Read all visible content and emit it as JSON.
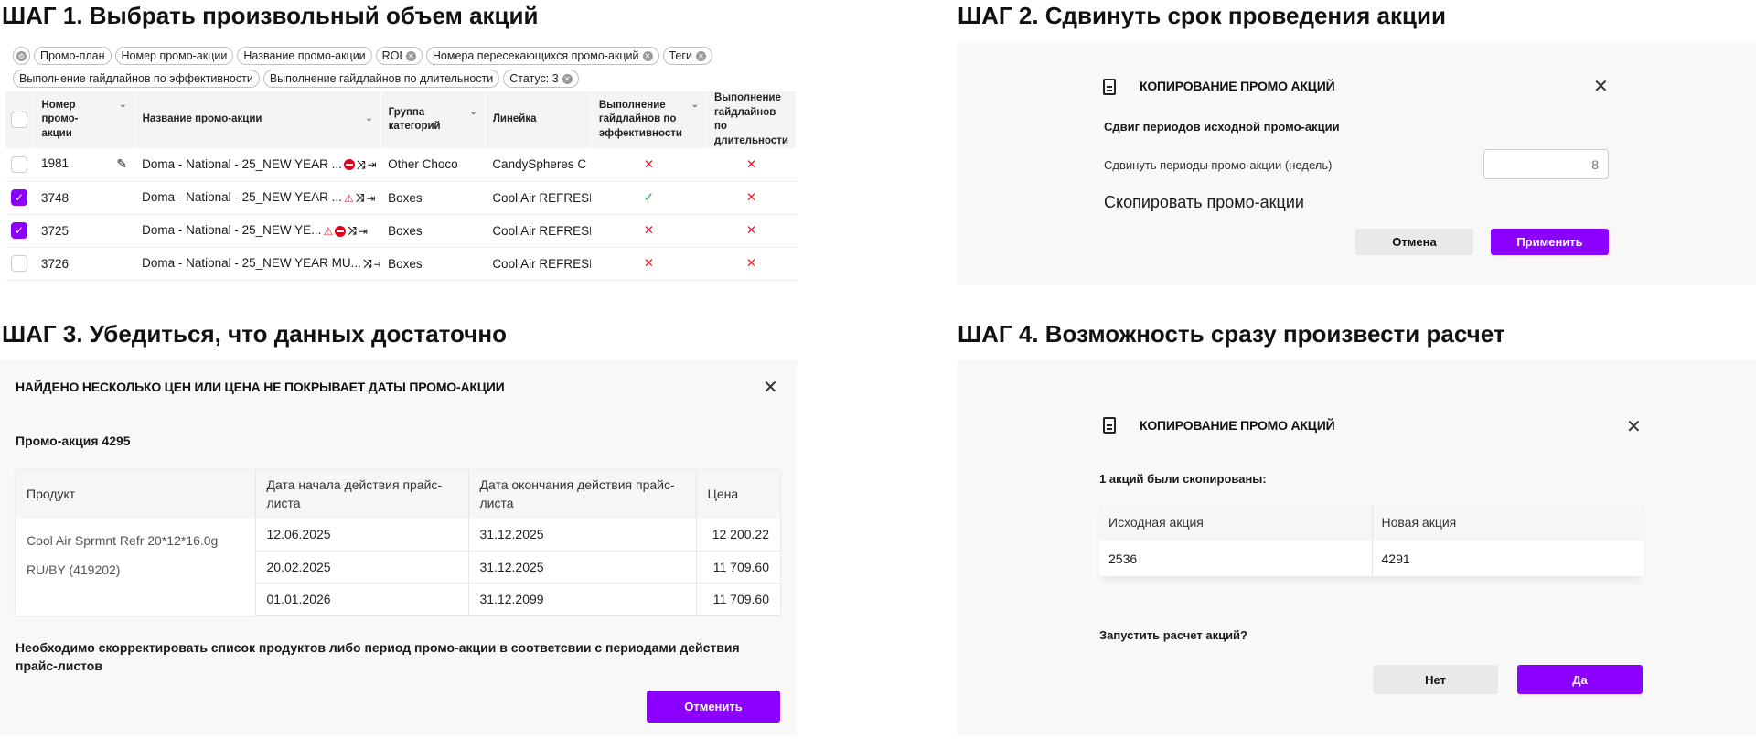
{
  "colors": {
    "accent": "#8b00ff",
    "error": "#e0202a",
    "success": "#2b9a3a"
  },
  "step1": {
    "title": "ШАГ 1. Выбрать произвольный объем акций",
    "chips_row1": [
      {
        "label": "Промо-план",
        "removable": false
      },
      {
        "label": "Номер промо-акции",
        "removable": false
      },
      {
        "label": "Название промо-акции",
        "removable": false
      },
      {
        "label": "ROI",
        "removable": true
      },
      {
        "label": "Номера пересекающихся промо-акций",
        "removable": true
      },
      {
        "label": "Теги",
        "removable": true
      }
    ],
    "chips_row2": [
      {
        "label": "Выполнение гайдлайнов по эффективности",
        "removable": false
      },
      {
        "label": "Выполнение гайдлайнов по длительности",
        "removable": false
      },
      {
        "label": "Статус: 3",
        "removable": true
      }
    ],
    "columns": [
      "Номер промо-акции",
      "Название промо-акции",
      "Группа категорий",
      "Линейка",
      "Выполнение гайдлайнов по эффективности",
      "Выполнение гайдлайнов по длительности"
    ],
    "rows": [
      {
        "checked": false,
        "number": "1981",
        "name": "Doma - National - 25_NEW YEAR ...",
        "icons": [
          "edit-icon",
          "stop-icon",
          "shuffle-icon",
          "exit-icon"
        ],
        "group": "Other Choco",
        "line": "CandySpheres C",
        "eff": "fail",
        "dur": "fail"
      },
      {
        "checked": true,
        "number": "3748",
        "name": "Doma - National - 25_NEW YEAR ...",
        "icons": [
          "warning-icon",
          "shuffle-icon",
          "exit-icon"
        ],
        "group": "Boxes",
        "line": "Cool Air REFRESH",
        "eff": "ok",
        "dur": "fail"
      },
      {
        "checked": true,
        "number": "3725",
        "name": "Doma - National - 25_NEW YE...",
        "icons": [
          "warning-icon",
          "stop-icon",
          "shuffle-icon",
          "exit-icon"
        ],
        "group": "Boxes",
        "line": "Cool Air REFRESH",
        "eff": "fail",
        "dur": "fail"
      },
      {
        "checked": false,
        "number": "3726",
        "name": "Doma - National - 25_NEW YEAR MU...",
        "icons": [
          "shuffle-icon",
          "exit-icon"
        ],
        "group": "Boxes",
        "line": "Cool Air REFRESH",
        "eff": "fail",
        "dur": "fail"
      }
    ]
  },
  "step2": {
    "title": "ШАГ 2. Сдвинуть срок проведения акции",
    "modal_title": "КОПИРОВАНИЕ ПРОМО АКЦИЙ",
    "section": "Сдвиг периодов исходной промо-акции",
    "shift_label": "Сдвинуть периоды промо-акции (недель)",
    "shift_value": "8",
    "copy_label": "Скопировать промо-акции",
    "cancel": "Отмена",
    "apply": "Применить"
  },
  "step3": {
    "title": "ШАГ 3. Убедиться, что данных достаточно",
    "modal_title": "НАЙДЕНО НЕСКОЛЬКО ЦЕН ИЛИ ЦЕНА НЕ ПОКРЫВАЕТ ДАТЫ ПРОМО-АКЦИИ",
    "promo": "Промо-акция 4295",
    "columns": [
      "Продукт",
      "Дата начала действия прайс-листа",
      "Дата окончания действия прайс-листа",
      "Цена"
    ],
    "product": "Cool Air Sprmnt Refr 20*12*16.0g RU/BY (419202)",
    "rows": [
      {
        "start": "12.06.2025",
        "end": "31.12.2025",
        "price": "12 200.22"
      },
      {
        "start": "20.02.2025",
        "end": "31.12.2025",
        "price": "11 709.60"
      },
      {
        "start": "01.01.2026",
        "end": "31.12.2099",
        "price": "11 709.60"
      }
    ],
    "note": "Необходимо скорректировать список продуктов либо период промо-акции в соответсвии с периодами действия прайс-листов",
    "cancel": "Отменить"
  },
  "step4": {
    "title": "ШАГ 4. Возможность сразу произвести расчет",
    "modal_title": "КОПИРОВАНИЕ ПРОМО АКЦИЙ",
    "copied": "1 акций были скопированы:",
    "columns": [
      "Исходная акция",
      "Новая акция"
    ],
    "rows": [
      {
        "source": "2536",
        "new": "4291"
      }
    ],
    "question": "Запустить расчет акций?",
    "no": "Нет",
    "yes": "Да"
  }
}
